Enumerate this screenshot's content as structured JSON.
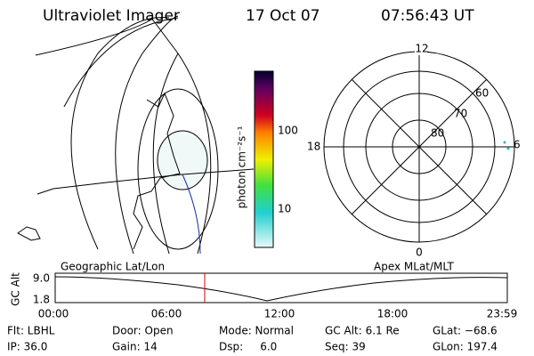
{
  "header": {
    "instrument": "Ultraviolet Imager",
    "date": "17 Oct 07",
    "time": "07:56:43 UT"
  },
  "colorbar": {
    "unit_label": "photon cm⁻²s⁻¹",
    "ticks": [
      "100",
      "10"
    ]
  },
  "polar": {
    "top": "12",
    "left": "18",
    "right": "6",
    "bottom": "0",
    "rings": [
      "60",
      "70",
      "80"
    ]
  },
  "strip": {
    "left_title": "Geographic Lat/Lon",
    "right_title": "Apex MLat/MLT",
    "axis_label": "GC Alt",
    "y_labels": [
      "9.0",
      "1.8"
    ],
    "x_labels": [
      "00:00",
      "06:00",
      "12:00",
      "18:00",
      "23:59"
    ]
  },
  "status": [
    [
      "Flt: LBHL",
      "IP: 36.0"
    ],
    [
      "Door: Open",
      "Gain: 14"
    ],
    [
      "Mode: Normal",
      "Dsp:     6.0"
    ],
    [
      "GC Alt: 6.1 Re",
      "Seq: 39"
    ],
    [
      "GLat: −68.6",
      "GLon: 197.4"
    ]
  ]
}
